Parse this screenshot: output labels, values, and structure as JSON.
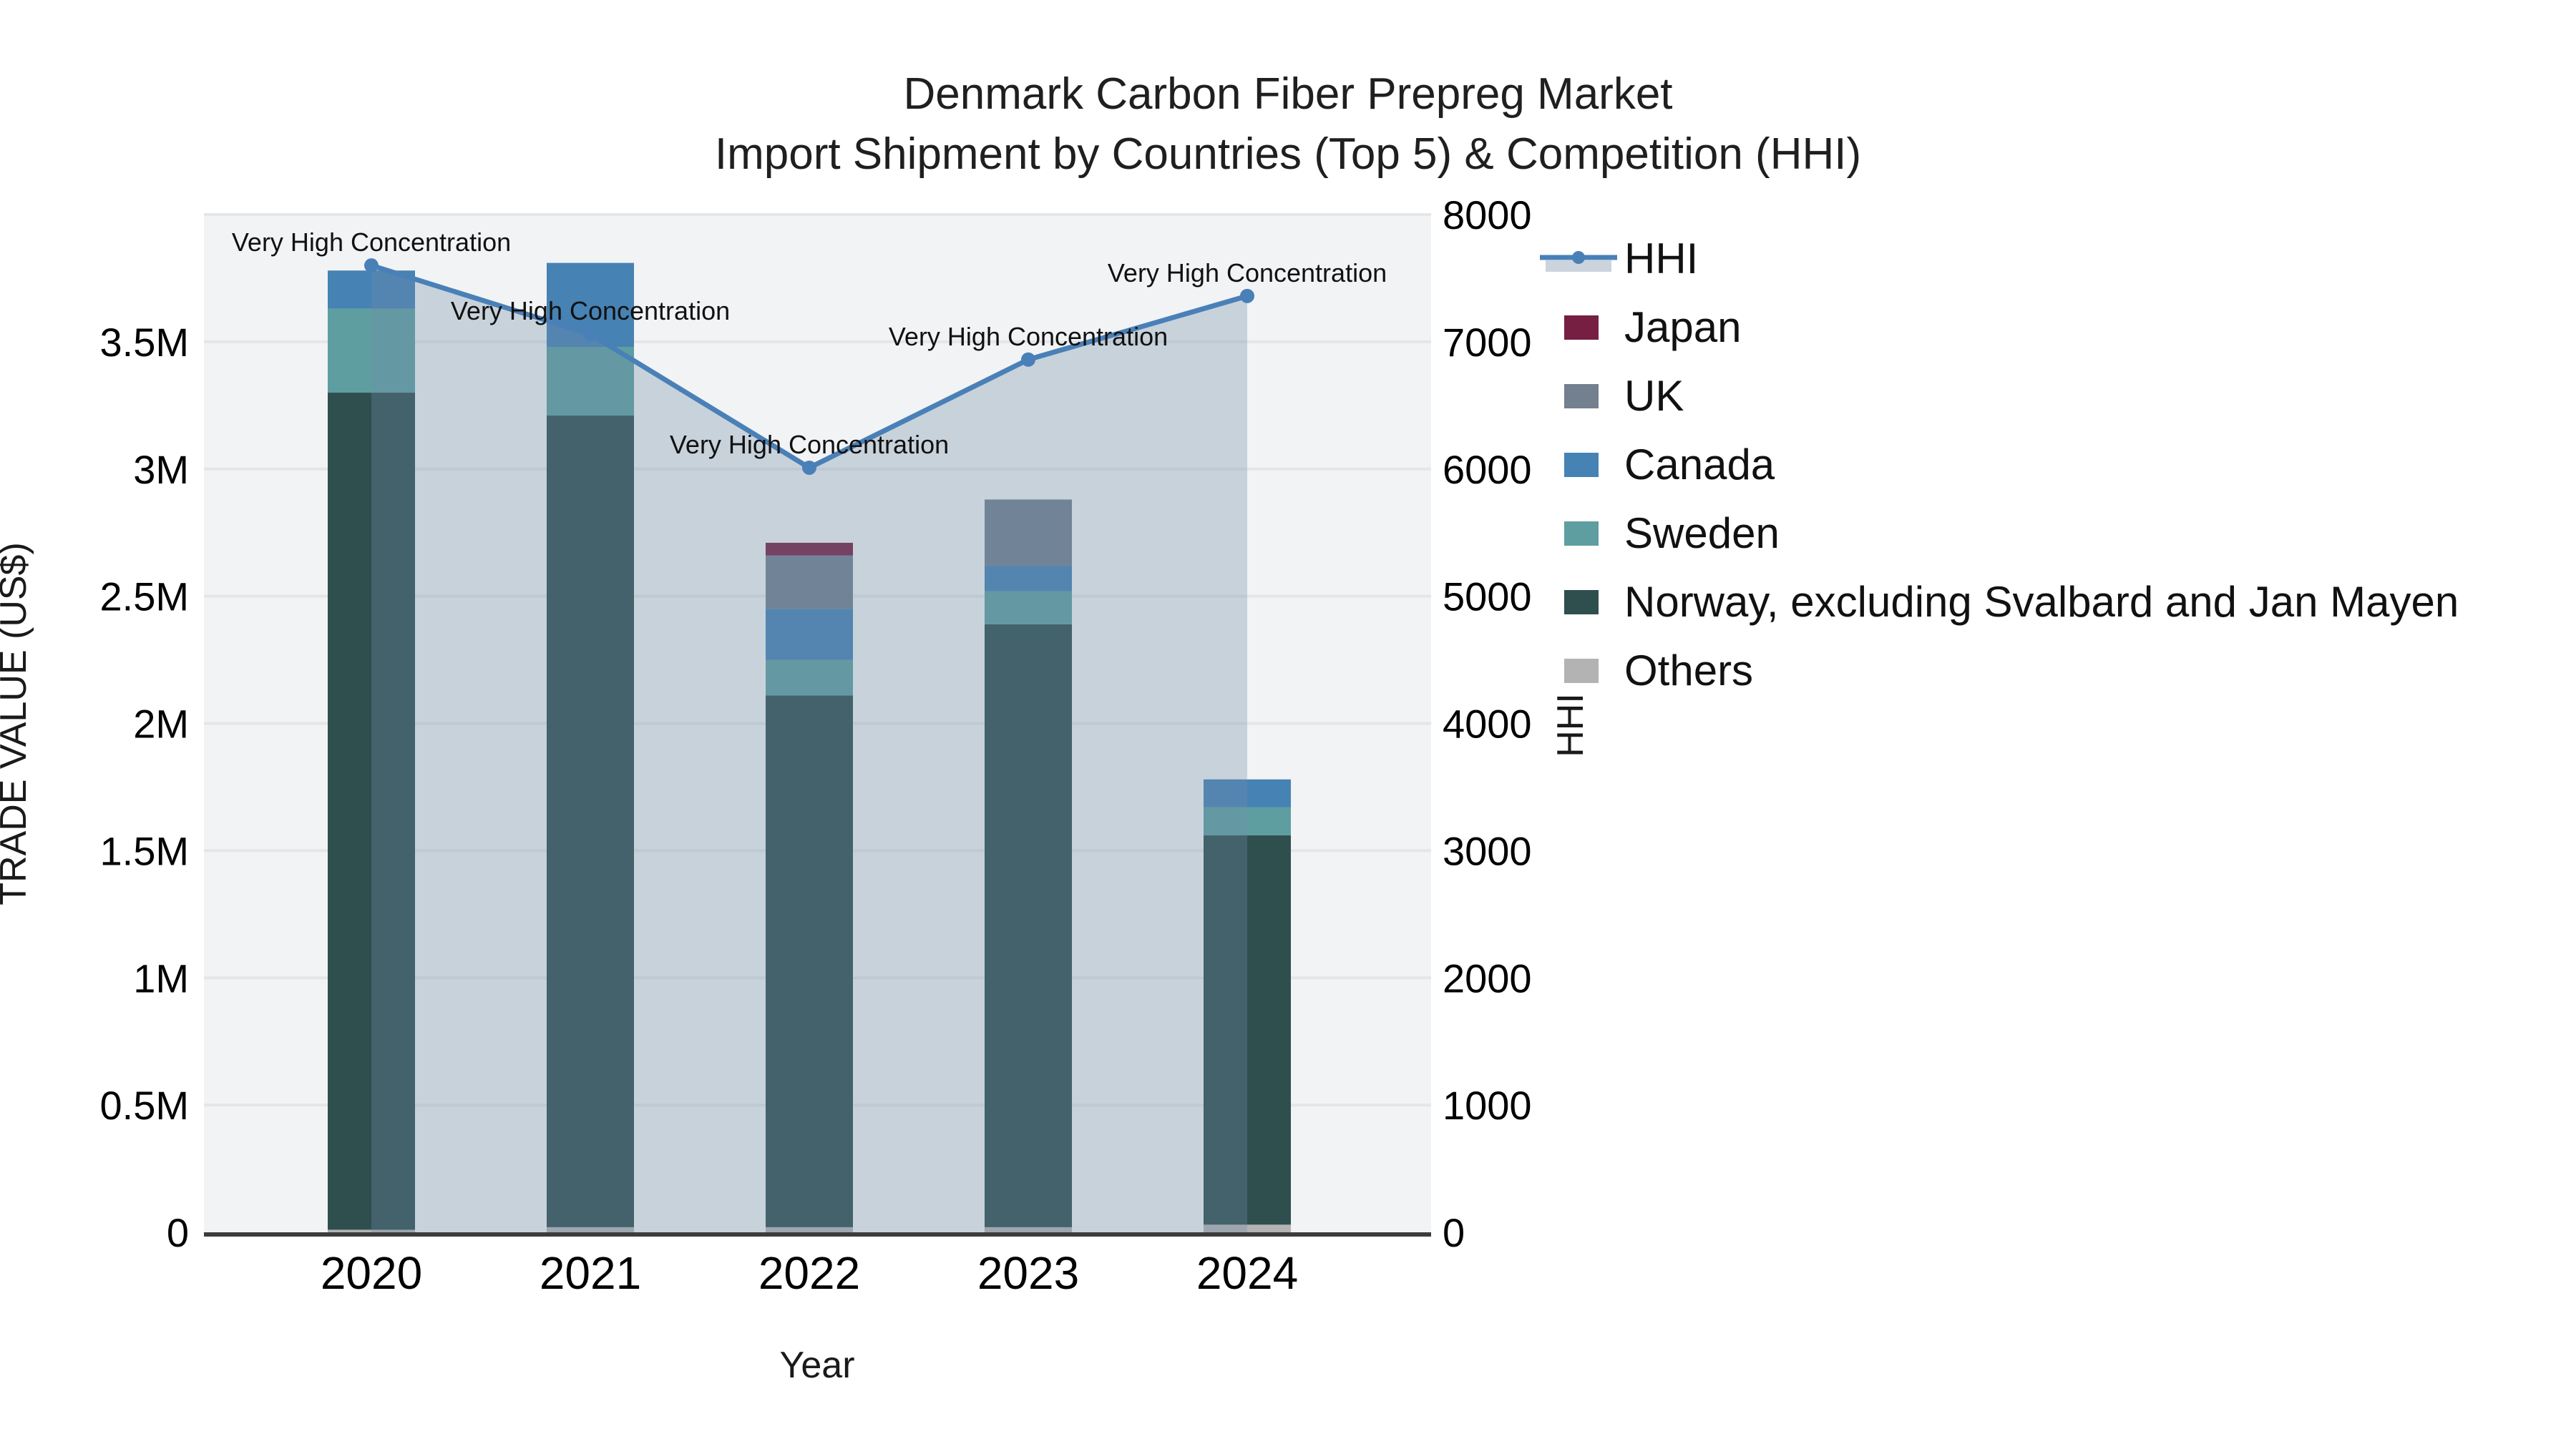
{
  "title": {
    "line1": "Denmark Carbon Fiber Prepreg Market",
    "line2": "Import Shipment by Countries (Top 5) & Competition (HHI)"
  },
  "axes": {
    "x": {
      "title": "Year",
      "ticks": [
        "2020",
        "2021",
        "2022",
        "2023",
        "2024"
      ]
    },
    "y_left": {
      "title": "TRADE VALUE (US$)",
      "ticks": [
        "0",
        "0.5M",
        "1M",
        "1.5M",
        "2M",
        "2.5M",
        "3M",
        "3.5M"
      ],
      "range": [
        0,
        4000000
      ]
    },
    "y_right": {
      "title": "HHI",
      "ticks": [
        "0",
        "1000",
        "2000",
        "3000",
        "4000",
        "5000",
        "6000",
        "7000",
        "8000"
      ],
      "range": [
        0,
        8000
      ]
    }
  },
  "colors": {
    "plot_background": "#f2f3f4",
    "figure_background": "#ffffff",
    "gridline": "#e4e6e8",
    "axis_line": "#3c3c3c",
    "hhi_line": "#4a80b8",
    "hhi_area_fill": "rgba(113,139,168,0.32)",
    "legend_hhi_band": "#ccd3dd"
  },
  "chart_data": {
    "type": "bar+line",
    "title": "Denmark Carbon Fiber Prepreg Market — Import Shipment by Countries (Top 5) & Competition (HHI)",
    "xlabel": "Year",
    "ylabel_left": "TRADE VALUE (US$)",
    "ylabel_right": "HHI",
    "ylim_left": [
      0,
      4000000
    ],
    "ylim_right": [
      0,
      8000
    ],
    "grid": true,
    "legend_position": "top-right",
    "categories": [
      "2020",
      "2021",
      "2022",
      "2023",
      "2024"
    ],
    "stack_note": "series listed bottom-to-top in stacking order; values in US$",
    "series": [
      {
        "name": "Others",
        "color": "#b3b3b3",
        "values": [
          10000,
          20000,
          20000,
          20000,
          30000
        ]
      },
      {
        "name": "Norway, excluding Svalbard and Jan Mayen",
        "color": "#2f4f4f",
        "values": [
          3290000,
          3190000,
          2090000,
          2370000,
          1530000
        ]
      },
      {
        "name": "Sweden",
        "color": "#5f9ea0",
        "values": [
          330000,
          270000,
          140000,
          130000,
          110000
        ]
      },
      {
        "name": "Canada",
        "color": "#4682b4",
        "values": [
          150000,
          330000,
          200000,
          100000,
          110000
        ]
      },
      {
        "name": "UK",
        "color": "#72808f",
        "values": [
          0,
          0,
          210000,
          260000,
          0
        ]
      },
      {
        "name": "Japan",
        "color": "#761f42",
        "values": [
          0,
          0,
          50000,
          0,
          0
        ]
      }
    ],
    "line_series": {
      "name": "HHI",
      "color": "#4a80b8",
      "area_fill": "rgba(113,139,168,0.32)",
      "values": [
        7600,
        7060,
        6010,
        6860,
        7360
      ]
    },
    "annotations": [
      {
        "text": "Very High Concentration",
        "category": "2020",
        "hhi": 7600
      },
      {
        "text": "Very High Concentration",
        "category": "2021",
        "hhi": 7060
      },
      {
        "text": "Very High Concentration",
        "category": "2022",
        "hhi": 6010
      },
      {
        "text": "Very High Concentration",
        "category": "2023",
        "hhi": 6860
      },
      {
        "text": "Very High Concentration",
        "category": "2024",
        "hhi": 7360
      }
    ]
  },
  "legend": {
    "items": [
      {
        "label": "HHI",
        "type": "line",
        "color": "#4a80b8",
        "band": "#ccd3dd"
      },
      {
        "label": "Japan",
        "type": "swatch",
        "color": "#761f42"
      },
      {
        "label": "UK",
        "type": "swatch",
        "color": "#72808f"
      },
      {
        "label": "Canada",
        "type": "swatch",
        "color": "#4682b4"
      },
      {
        "label": "Sweden",
        "type": "swatch",
        "color": "#5f9ea0"
      },
      {
        "label": "Norway, excluding Svalbard and Jan Mayen",
        "type": "swatch",
        "color": "#2f4f4f"
      },
      {
        "label": "Others",
        "type": "swatch",
        "color": "#b3b3b3"
      }
    ]
  }
}
